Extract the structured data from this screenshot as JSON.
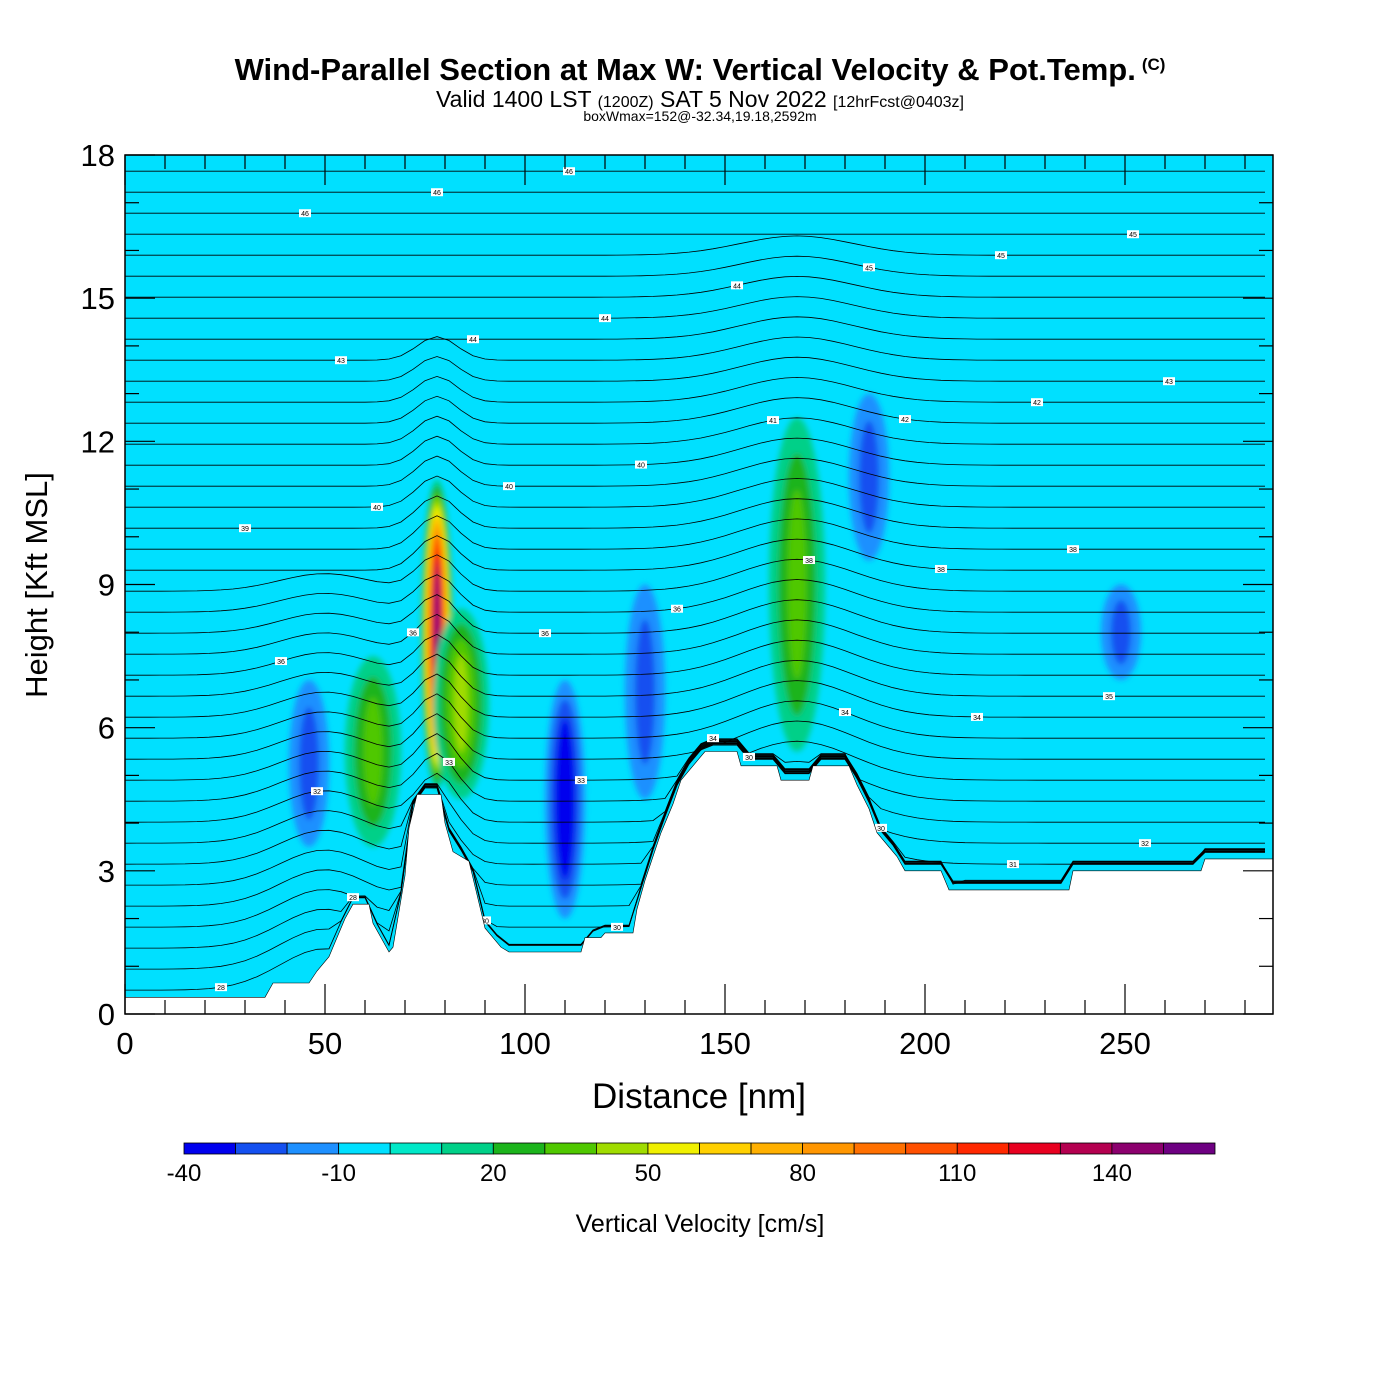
{
  "header": {
    "title": "Wind-Parallel Section at Max W: Vertical Velocity & Pot.Temp.",
    "copyright": "(C)",
    "valid_prefix": "Valid 1400 LST",
    "valid_zulu": "(1200Z)",
    "valid_date": "SAT 5 Nov 2022",
    "forecast": "[12hrFcst@0403z]",
    "subinfo": "boxWmax=152@-32.34,19.18,2592m"
  },
  "chart_data": {
    "type": "heatmap",
    "xlabel": "Distance [nm]",
    "ylabel": "Height [Kft MSL]",
    "xlim": [
      0,
      287
    ],
    "ylim": [
      0,
      18
    ],
    "x_ticks": [
      "0",
      "50",
      "100",
      "150",
      "200",
      "250"
    ],
    "y_ticks": [
      "0",
      "3",
      "6",
      "9",
      "12",
      "15",
      "18"
    ],
    "terrain_profile": [
      [
        0,
        0.35
      ],
      [
        35,
        0.35
      ],
      [
        37,
        0.65
      ],
      [
        46,
        0.65
      ],
      [
        48,
        0.9
      ],
      [
        51,
        1.2
      ],
      [
        53,
        1.6
      ],
      [
        55,
        2.0
      ],
      [
        57,
        2.3
      ],
      [
        61,
        2.3
      ],
      [
        62,
        1.9
      ],
      [
        64,
        1.6
      ],
      [
        66,
        1.3
      ],
      [
        67,
        1.4
      ],
      [
        68,
        1.9
      ],
      [
        70,
        2.9
      ],
      [
        71,
        3.9
      ],
      [
        73,
        4.6
      ],
      [
        79,
        4.6
      ],
      [
        80,
        4.0
      ],
      [
        82,
        3.4
      ],
      [
        86,
        3.2
      ],
      [
        88,
        2.5
      ],
      [
        90,
        1.8
      ],
      [
        94,
        1.4
      ],
      [
        96,
        1.3
      ],
      [
        114,
        1.3
      ],
      [
        115,
        1.6
      ],
      [
        119,
        1.6
      ],
      [
        120,
        1.7
      ],
      [
        127,
        1.7
      ],
      [
        128,
        2.2
      ],
      [
        130,
        2.8
      ],
      [
        132,
        3.3
      ],
      [
        134,
        3.8
      ],
      [
        137,
        4.4
      ],
      [
        139,
        4.9
      ],
      [
        143,
        5.3
      ],
      [
        145,
        5.5
      ],
      [
        153,
        5.5
      ],
      [
        154,
        5.2
      ],
      [
        163,
        5.2
      ],
      [
        164,
        4.9
      ],
      [
        171,
        4.9
      ],
      [
        172,
        5.2
      ],
      [
        181,
        5.2
      ],
      [
        183,
        4.8
      ],
      [
        186,
        4.3
      ],
      [
        188,
        3.8
      ],
      [
        191,
        3.5
      ],
      [
        193,
        3.3
      ],
      [
        195,
        3.0
      ],
      [
        204,
        3.0
      ],
      [
        206,
        2.6
      ],
      [
        236,
        2.6
      ],
      [
        237,
        3.0
      ],
      [
        269,
        3.0
      ],
      [
        270,
        3.25
      ],
      [
        287,
        3.25
      ]
    ],
    "theta_label_values": [
      "46",
      "46",
      "46",
      "45",
      "45",
      "45",
      "44",
      "44",
      "44",
      "43",
      "43",
      "42",
      "42",
      "41",
      "40",
      "40",
      "40",
      "39",
      "38",
      "38",
      "38",
      "36",
      "36",
      "36",
      "36",
      "35",
      "34",
      "34",
      "34",
      "33",
      "33",
      "32",
      "32",
      "31",
      "30",
      "30",
      "30",
      "30",
      "28",
      "28"
    ],
    "colorbar": {
      "label": "Vertical Velocity [cm/s]",
      "levels": [
        -40,
        -30,
        -20,
        -10,
        0,
        10,
        20,
        30,
        40,
        50,
        60,
        70,
        80,
        90,
        100,
        110,
        120,
        130,
        140,
        150,
        160
      ],
      "tick_labels": [
        "-40",
        "-10",
        "20",
        "50",
        "80",
        "110",
        "140"
      ],
      "colors": [
        "#0000ee",
        "#1450f0",
        "#1e90ff",
        "#00e0ff",
        "#00e8c8",
        "#00d088",
        "#1cb41c",
        "#50c800",
        "#a0dc00",
        "#f0f000",
        "#ffd000",
        "#ffb000",
        "#ff9600",
        "#ff7000",
        "#ff5000",
        "#ff2800",
        "#e80020",
        "#b40050",
        "#8c006e",
        "#6e0082"
      ]
    },
    "features": [
      {
        "type": "updraft",
        "x": 78,
        "y_range": [
          4.7,
          11.2
        ],
        "peak_cm_s": 152
      },
      {
        "type": "updraft",
        "x": 84,
        "y_range": [
          4.5,
          8.5
        ],
        "peak_cm_s": 40
      },
      {
        "type": "updraft",
        "x": 62,
        "y_range": [
          3.5,
          7.5
        ],
        "peak_cm_s": 25
      },
      {
        "type": "updraft",
        "x": 168,
        "y_range": [
          5.5,
          12.5
        ],
        "peak_cm_s": 30
      },
      {
        "type": "downdraft",
        "x": 110,
        "y_range": [
          2.0,
          7.0
        ],
        "min_cm_s": -40
      },
      {
        "type": "downdraft",
        "x": 46,
        "y_range": [
          3.5,
          7.0
        ],
        "min_cm_s": -20
      },
      {
        "type": "downdraft",
        "x": 130,
        "y_range": [
          4.5,
          9.0
        ],
        "min_cm_s": -20
      },
      {
        "type": "downdraft",
        "x": 186,
        "y_range": [
          9.5,
          13.0
        ],
        "min_cm_s": -20
      },
      {
        "type": "downdraft",
        "x": 249,
        "y_range": [
          7.0,
          9.0
        ],
        "min_cm_s": -20
      }
    ]
  }
}
